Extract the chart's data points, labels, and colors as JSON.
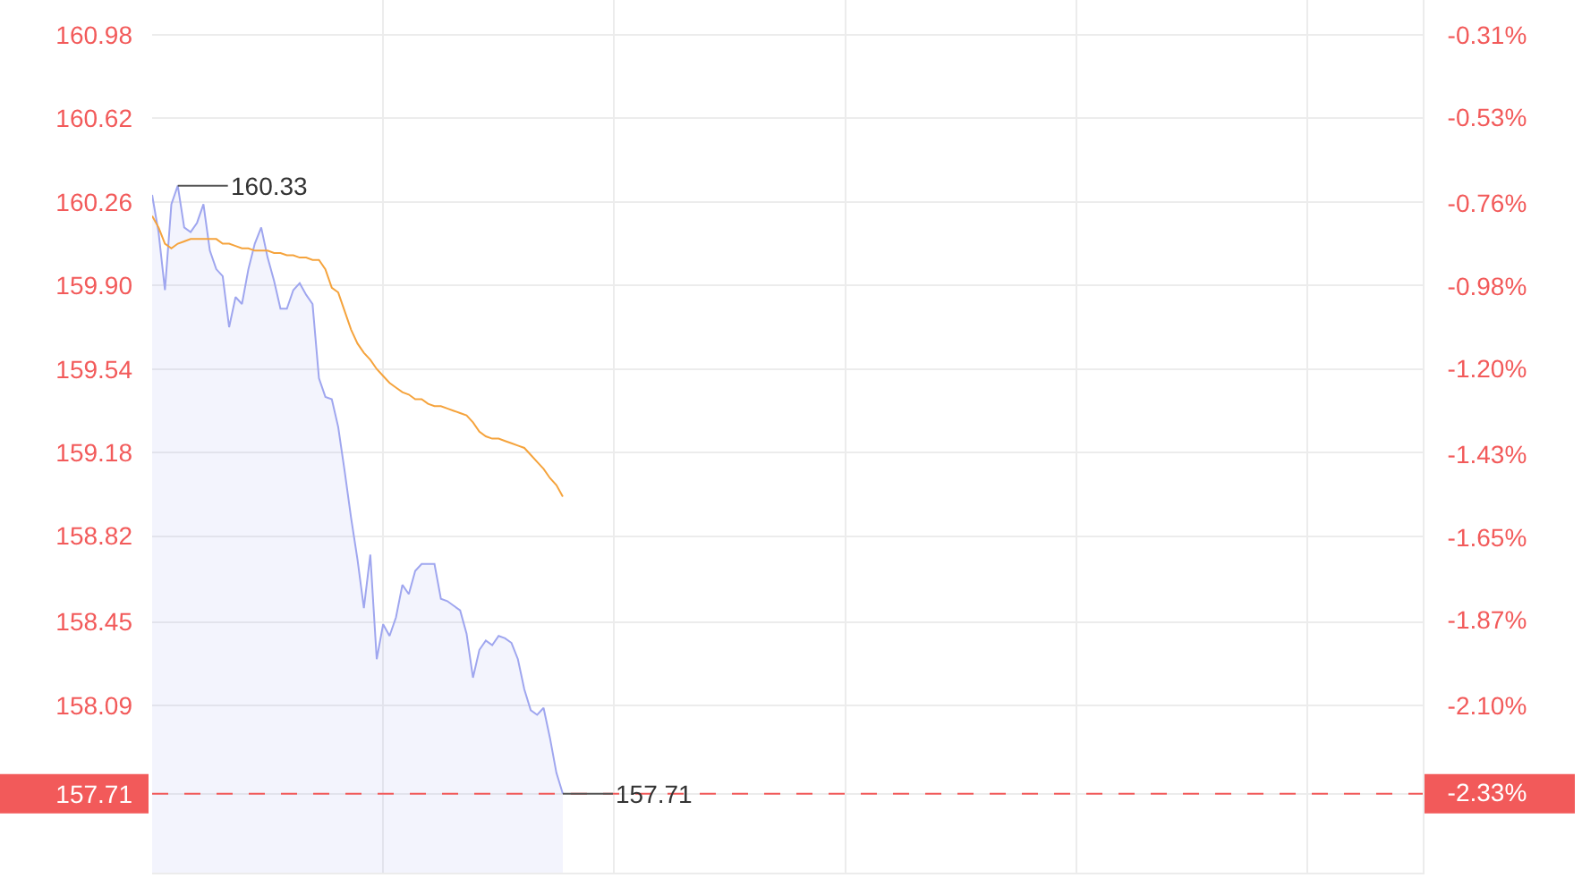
{
  "chart_data": {
    "type": "area",
    "categories": [
      null,
      null,
      null,
      null,
      null,
      null,
      null,
      null,
      null,
      null,
      null,
      null,
      null,
      null,
      null,
      null,
      null,
      null,
      null,
      null,
      null,
      null,
      null,
      null,
      null,
      null,
      null,
      null,
      null,
      null,
      null,
      null,
      null,
      null,
      null,
      null,
      null,
      null,
      null,
      null,
      null,
      null,
      null,
      null,
      null,
      null,
      null,
      null,
      null,
      null,
      null,
      null,
      null,
      null,
      null,
      null,
      null,
      null,
      null,
      null,
      null,
      null,
      null,
      null,
      null,
      null,
      null,
      null,
      null,
      null,
      null,
      null,
      null,
      null,
      null,
      null,
      null,
      null,
      null,
      null,
      null,
      null,
      null,
      null,
      null,
      null,
      null,
      null,
      null,
      null,
      null,
      null,
      null,
      null,
      null,
      null,
      null,
      null,
      null,
      null,
      null,
      null,
      null,
      null,
      null,
      null,
      null,
      null,
      null,
      null,
      null,
      null,
      null,
      null,
      null,
      null,
      null,
      null,
      null,
      null,
      null,
      null,
      null,
      null,
      null,
      null,
      null,
      null,
      null,
      null,
      null,
      null,
      null,
      null,
      null,
      null,
      null,
      null,
      null,
      null,
      null,
      null,
      null,
      null,
      null,
      null,
      null,
      null,
      null,
      null,
      null,
      null,
      null,
      null,
      null,
      null,
      null,
      null,
      null,
      null,
      null,
      null,
      null,
      null,
      null,
      null,
      null,
      null,
      null,
      null,
      null,
      null,
      null,
      null,
      null,
      null,
      null,
      null,
      null,
      null,
      null,
      null,
      null,
      null,
      null,
      null,
      null,
      null,
      null,
      null,
      null,
      null,
      null,
      null,
      null,
      null,
      null,
      null,
      null
    ],
    "series": [
      {
        "color": "#9fa6ef",
        "values": [
          160.29,
          160.13,
          159.88,
          160.25,
          160.33,
          160.15,
          160.13,
          160.17,
          160.25,
          160.05,
          159.97,
          159.94,
          159.72,
          159.85,
          159.82,
          159.97,
          160.08,
          160.15,
          160.02,
          159.92,
          159.8,
          159.8,
          159.88,
          159.91,
          159.86,
          159.82,
          159.5,
          159.42,
          159.41,
          159.29,
          159.1,
          158.9,
          158.72,
          158.51,
          158.74,
          158.29,
          158.44,
          158.39,
          158.47,
          158.61,
          158.57,
          158.67,
          158.7,
          158.7,
          158.7,
          158.55,
          158.54,
          158.52,
          158.5,
          158.4,
          158.21,
          158.33,
          158.37,
          158.35,
          158.39,
          158.38,
          158.36,
          158.29,
          158.16,
          158.07,
          158.05,
          158.08,
          157.95,
          157.8,
          157.71,
          null,
          null,
          null,
          null,
          null,
          null,
          null,
          null,
          null,
          null,
          null,
          null,
          null,
          null,
          null,
          null,
          null,
          null,
          null,
          null,
          null,
          null,
          null,
          null,
          null,
          null,
          null,
          null,
          null,
          null,
          null,
          null,
          null,
          null,
          null,
          null,
          null,
          null,
          null,
          null,
          null,
          null,
          null,
          null,
          null,
          null,
          null,
          null,
          null,
          null,
          null,
          null,
          null,
          null,
          null,
          null,
          null,
          null,
          null,
          null,
          null,
          null,
          null,
          null,
          null,
          null,
          null,
          null,
          null,
          null,
          null,
          null,
          null,
          null,
          null,
          null,
          null,
          null,
          null,
          null,
          null,
          null,
          null,
          null,
          null,
          null,
          null,
          null,
          null,
          null,
          null,
          null,
          null,
          null,
          null,
          null,
          null,
          null,
          null,
          null,
          null,
          null,
          null,
          null,
          null,
          null,
          null,
          null,
          null,
          null,
          null,
          null,
          null,
          null,
          null,
          null,
          null,
          null,
          null,
          null,
          null,
          null,
          null,
          null,
          null,
          null,
          null,
          null,
          null,
          null,
          null,
          null,
          null,
          null
        ],
        "value_labels": [
          null,
          null,
          null,
          null,
          "160.33",
          null,
          null,
          null,
          null,
          null,
          null,
          null,
          null,
          null,
          null,
          null,
          null,
          null,
          null,
          null,
          null,
          null,
          null,
          null,
          null,
          null,
          null,
          null,
          null,
          null,
          null,
          null,
          null,
          null,
          null,
          null,
          null,
          null,
          null,
          null,
          null,
          null,
          null,
          null,
          null,
          null,
          null,
          null,
          null,
          null,
          null,
          null,
          null,
          null,
          null,
          null,
          null,
          null,
          null,
          null,
          null,
          null,
          null,
          null,
          "157.71",
          null,
          null,
          null,
          null,
          null,
          null,
          null,
          null,
          null,
          null,
          null,
          null,
          null,
          null,
          null,
          null,
          null,
          null,
          null,
          null,
          null,
          null,
          null,
          null,
          null,
          null,
          null,
          null,
          null,
          null,
          null,
          null,
          null,
          null,
          null,
          null,
          null,
          null,
          null,
          null,
          null,
          null,
          null,
          null,
          null,
          null,
          null,
          null,
          null,
          null,
          null,
          null,
          null,
          null,
          null,
          null,
          null,
          null,
          null,
          null,
          null,
          null,
          null,
          null,
          null,
          null,
          null,
          null,
          null,
          null,
          null,
          null,
          null,
          null,
          null,
          null,
          null,
          null,
          null,
          null,
          null,
          null,
          null,
          null,
          null,
          null,
          null,
          null,
          null,
          null,
          null,
          null,
          null,
          null,
          null,
          null,
          null,
          null,
          null,
          null,
          null,
          null,
          null,
          null,
          null,
          null,
          null,
          null,
          null,
          null,
          null,
          null,
          null,
          null,
          null,
          null,
          null,
          null,
          null,
          null,
          null,
          null,
          null,
          null,
          null,
          null,
          null,
          null,
          null,
          null,
          null,
          null,
          null,
          null
        ]
      },
      {
        "type": "line",
        "color": "#f5a33c",
        "values": [
          160.2,
          160.15,
          160.08,
          160.06,
          160.08,
          160.09,
          160.1,
          160.1,
          160.1,
          160.1,
          160.1,
          160.08,
          160.08,
          160.07,
          160.06,
          160.06,
          160.05,
          160.05,
          160.05,
          160.04,
          160.04,
          160.03,
          160.03,
          160.02,
          160.02,
          160.01,
          160.01,
          159.97,
          159.89,
          159.87,
          159.79,
          159.71,
          159.65,
          159.61,
          159.58,
          159.54,
          159.51,
          159.48,
          159.46,
          159.44,
          159.43,
          159.41,
          159.41,
          159.39,
          159.38,
          159.38,
          159.37,
          159.36,
          159.35,
          159.34,
          159.31,
          159.27,
          159.25,
          159.24,
          159.24,
          159.23,
          159.22,
          159.21,
          159.2,
          159.17,
          159.14,
          159.11,
          159.07,
          159.04,
          158.99,
          null,
          null,
          null,
          null,
          null,
          null,
          null,
          null,
          null,
          null,
          null,
          null,
          null,
          null,
          null,
          null,
          null,
          null,
          null,
          null,
          null,
          null,
          null,
          null,
          null,
          null,
          null,
          null,
          null,
          null,
          null,
          null,
          null,
          null,
          null,
          null,
          null,
          null,
          null,
          null,
          null,
          null,
          null,
          null,
          null,
          null,
          null,
          null,
          null,
          null,
          null,
          null,
          null,
          null,
          null,
          null,
          null,
          null,
          null,
          null,
          null,
          null,
          null,
          null,
          null,
          null,
          null,
          null,
          null,
          null,
          null,
          null,
          null,
          null,
          null,
          null,
          null,
          null,
          null,
          null,
          null,
          null,
          null,
          null,
          null,
          null,
          null,
          null,
          null,
          null,
          null,
          null,
          null,
          null,
          null,
          null,
          null,
          null,
          null,
          null,
          null,
          null,
          null,
          null,
          null,
          null,
          null,
          null,
          null,
          null,
          null,
          null,
          null,
          null,
          null,
          null,
          null,
          null,
          null,
          null,
          null,
          null,
          null,
          null,
          null,
          null,
          null,
          null,
          null,
          null,
          null,
          null,
          null,
          null
        ]
      }
    ],
    "ylim": [
      157.37,
      161.13
    ],
    "yticks": [
      157.71,
      158.09,
      158.45,
      158.82,
      159.18,
      159.54,
      {
        "value": 159.9,
        "label": "159.90"
      },
      160.26,
      160.62,
      160.98
    ],
    "y2lim": [
      -2.545,
      -0.217
    ],
    "y2ticks": [
      {
        "value": -2.33,
        "label": "-2.33%"
      },
      {
        "value": -2.1,
        "label": "-2.10%"
      },
      {
        "value": -1.87,
        "label": "-1.87%"
      },
      {
        "value": -1.65,
        "label": "-1.65%"
      },
      {
        "value": -1.43,
        "label": "-1.43%"
      },
      {
        "value": -1.2,
        "label": "-1.20%"
      },
      {
        "value": -0.98,
        "label": "-0.98%"
      },
      {
        "value": -0.76,
        "label": "-0.76%"
      },
      {
        "value": -0.53,
        "label": "-0.53%"
      },
      {
        "value": -0.31,
        "label": "-0.31%"
      }
    ],
    "grid": true,
    "tick_labels": "y",
    "ref_lines": [
      {
        "axis": "y",
        "value": 157.71,
        "color": "#f25a5a",
        "line_style": "dashed"
      }
    ]
  }
}
